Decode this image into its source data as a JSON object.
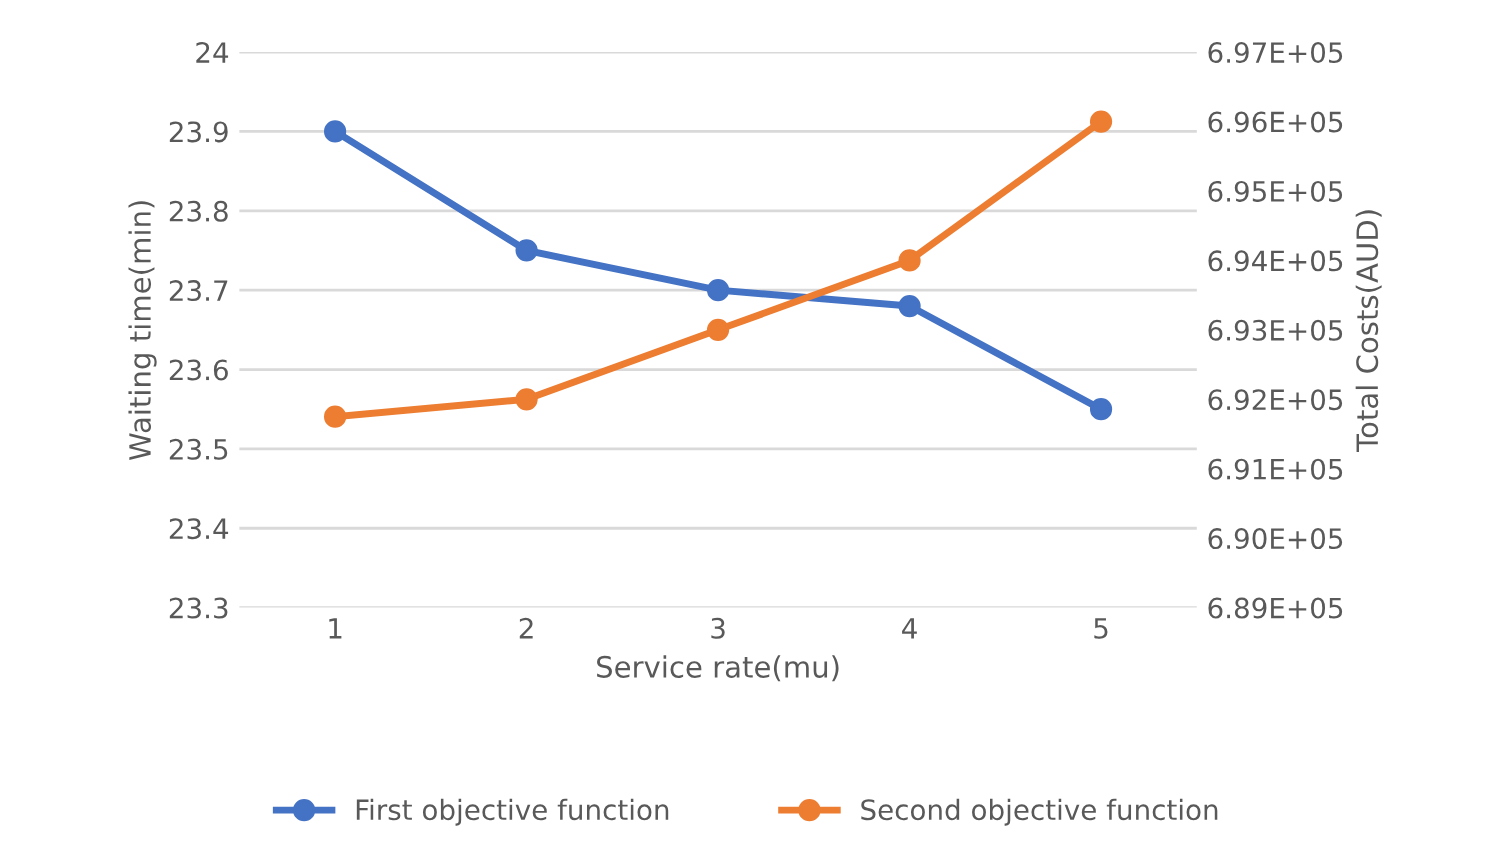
{
  "chart_data": {
    "type": "line",
    "xlabel": "Service rate(mu)",
    "ylabel": "Waiting time(min)",
    "y2label": "Total Costs(AUD)",
    "categories": [
      "1",
      "2",
      "3",
      "4",
      "5"
    ],
    "series": [
      {
        "name": "First objective function",
        "color": "#4472c4",
        "values": [
          23.9,
          23.75,
          23.7,
          23.68,
          23.55
        ]
      },
      {
        "name": "Second objective function",
        "color": "#ed7d31",
        "axis": "y2",
        "values": [
          691750,
          692000,
          693000,
          694000,
          696000
        ]
      }
    ],
    "ylim": [
      23.3,
      24
    ],
    "yticks": [
      23.3,
      23.4,
      23.5,
      23.6,
      23.7,
      23.8,
      23.9,
      24
    ],
    "y2lim": [
      689000,
      697000
    ],
    "y2ticks": [
      {
        "value": 689000,
        "label": "6.89E+05"
      },
      {
        "value": 690000,
        "label": "6.90E+05"
      },
      {
        "value": 691000,
        "label": "6.91E+05"
      },
      {
        "value": 692000,
        "label": "6.92E+05"
      },
      {
        "value": 693000,
        "label": "6.93E+05"
      },
      {
        "value": 694000,
        "label": "6.94E+05"
      },
      {
        "value": 695000,
        "label": "6.95E+05"
      },
      {
        "value": 696000,
        "label": "6.96E+05"
      },
      {
        "value": 697000,
        "label": "6.97E+05"
      }
    ],
    "grid": "y",
    "legend": "bottom",
    "marker": "circle",
    "line_style": "solid"
  }
}
